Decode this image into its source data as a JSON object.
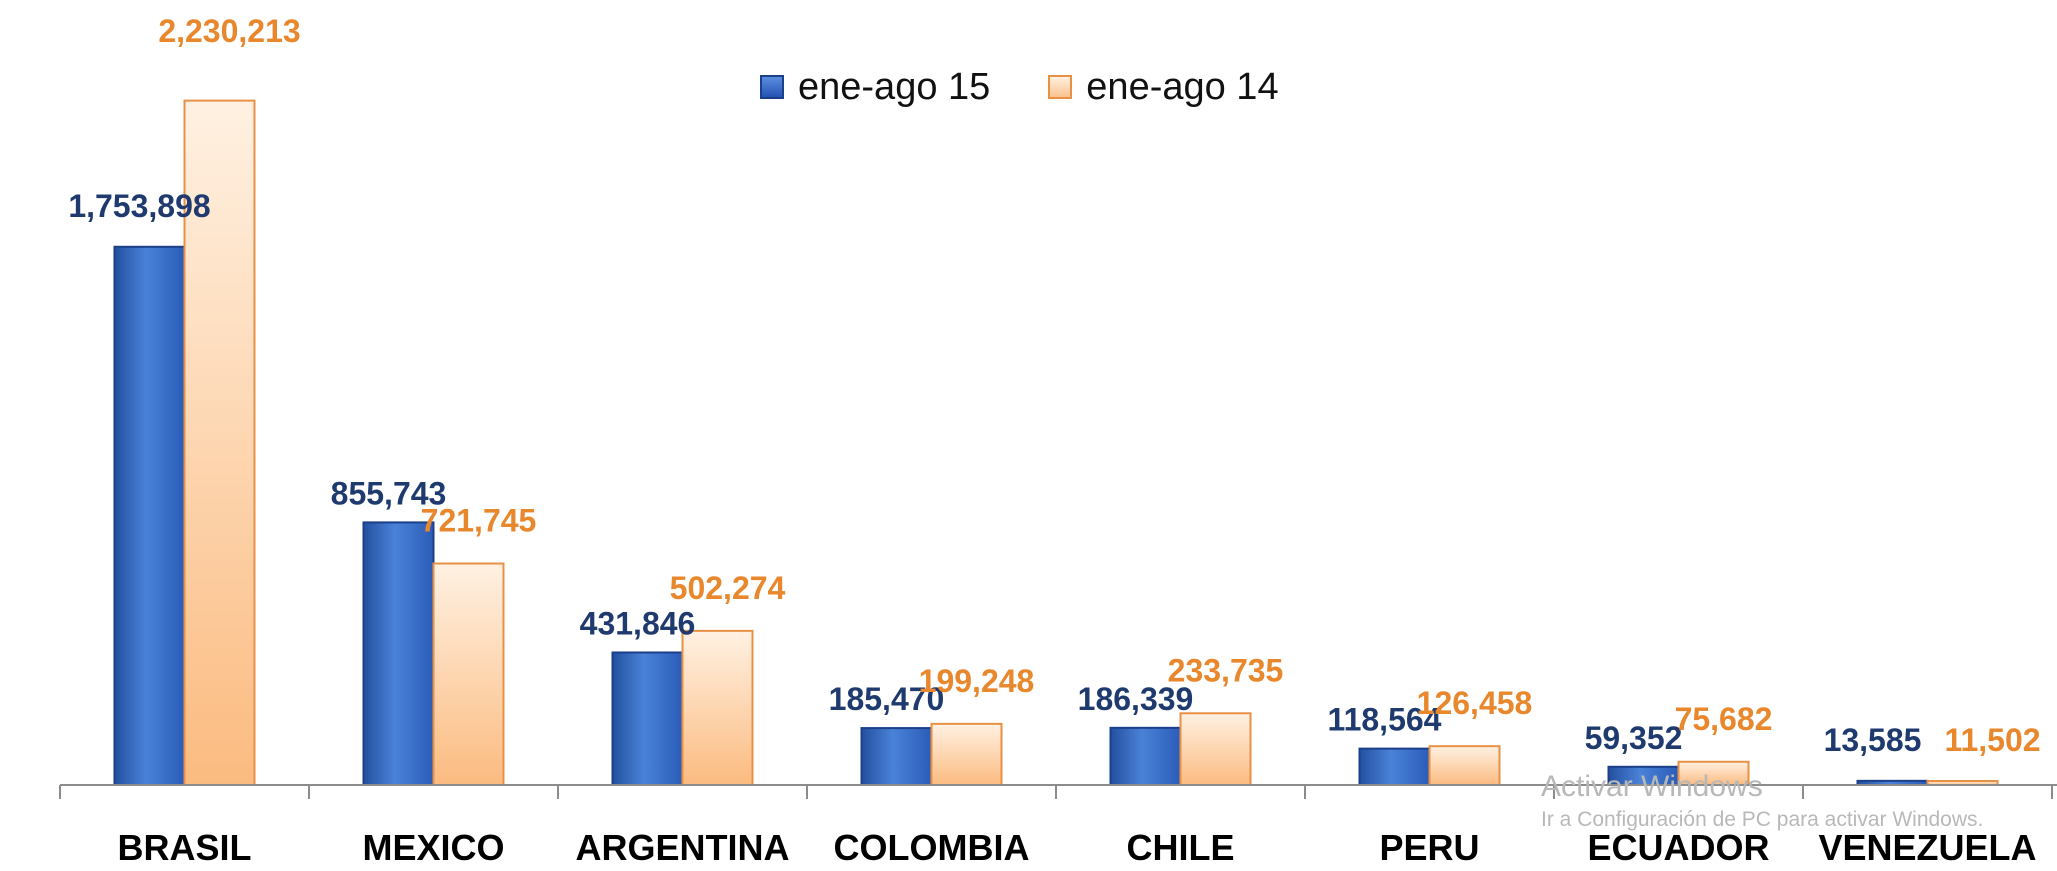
{
  "chart_data": {
    "type": "bar",
    "categories": [
      "BRASIL",
      "MEXICO",
      "ARGENTINA",
      "COLOMBIA",
      "CHILE",
      "PERU",
      "ECUADOR",
      "VENEZUELA"
    ],
    "series": [
      {
        "name": "ene-ago 15",
        "values": [
          1753898,
          855743,
          431846,
          185470,
          186339,
          118564,
          59352,
          13585
        ],
        "labels": [
          "1,753,898",
          "855,743",
          "431,846",
          "185,470",
          "186,339",
          "118,564",
          "59,352",
          "13,585"
        ],
        "color": "#2f64c4",
        "label_color": "#1f3a6e"
      },
      {
        "name": "ene-ago 14",
        "values": [
          2230213,
          721745,
          502274,
          199248,
          233735,
          126458,
          75682,
          11502
        ],
        "labels": [
          "2,230,213",
          "721,745",
          "502,274",
          "199,248",
          "233,735",
          "126,458",
          "75,682",
          "11,502"
        ],
        "color": "#fbc28e",
        "label_color": "#e8872b"
      }
    ],
    "ylim": [
      0,
      2330000
    ],
    "grid": false,
    "legend_position": "top-center",
    "title": "",
    "xlabel": "",
    "ylabel": ""
  },
  "watermark": {
    "line1": "Activar Windows",
    "line2": "Ir a Configuración de PC para activar Windows."
  }
}
